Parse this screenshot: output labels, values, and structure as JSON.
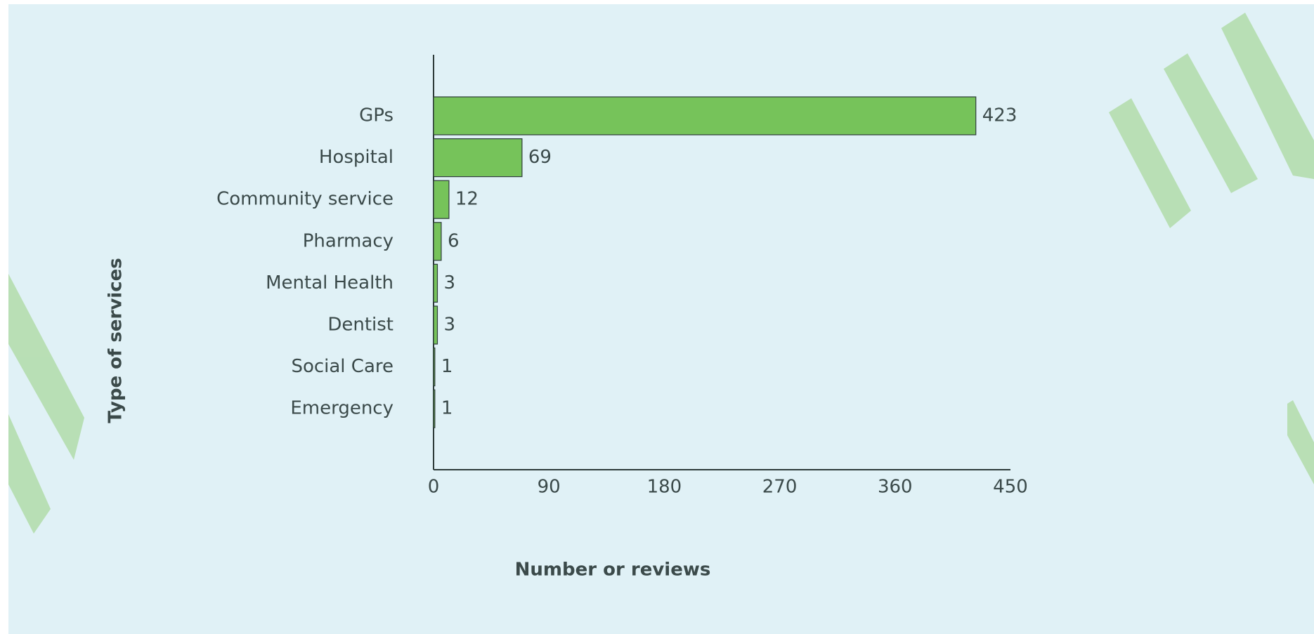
{
  "chart_data": {
    "type": "bar",
    "orientation": "horizontal",
    "categories": [
      "GPs",
      "Hospital",
      "Community service",
      "Pharmacy",
      "Mental Health",
      "Dentist",
      "Social Care",
      "Emergency"
    ],
    "values": [
      423,
      69,
      12,
      6,
      3,
      3,
      1,
      1
    ],
    "color": "#76c35a",
    "x_label": "Number or reviews",
    "y_label": "Type of services",
    "xlim": [
      0,
      450
    ],
    "xticks": [
      0,
      90,
      180,
      270,
      360,
      450
    ],
    "grid": false
  }
}
